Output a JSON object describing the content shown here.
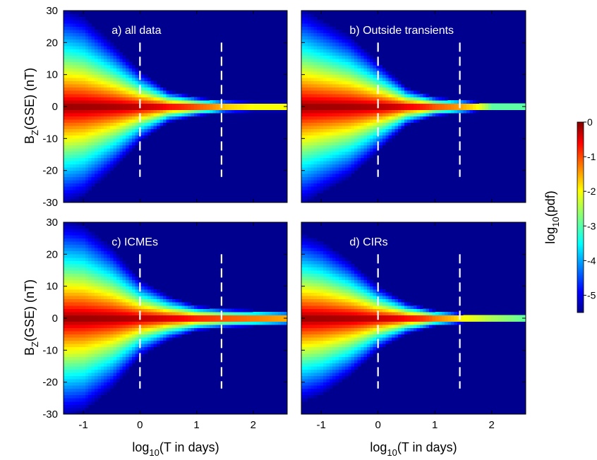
{
  "figure": {
    "colorbar": {
      "label_main": "log",
      "label_sub": "10",
      "label_tail": "(pdf)",
      "range": [
        -5.5,
        0
      ],
      "ticks": [
        "0",
        "-1",
        "-2",
        "-3",
        "-4",
        "-5"
      ],
      "tick_values": [
        0,
        -1,
        -2,
        -3,
        -4,
        -5
      ],
      "colormap": "jet"
    },
    "ylabel": {
      "main": "B",
      "sub": "Z",
      "tail": "(GSE) (nT)"
    },
    "xlabel": {
      "main": "log",
      "sub": "10",
      "tail": "(T in days)"
    },
    "background_color": "#00008f"
  },
  "chart_data": [
    {
      "type": "heatmap",
      "title": "a) all data",
      "x_range": [
        -1.35,
        2.6
      ],
      "y_range": [
        -30,
        30
      ],
      "x_ticks": [
        "-1",
        "0",
        "1",
        "2"
      ],
      "x_tick_values": [
        -1,
        0,
        1,
        2
      ],
      "y_ticks": [
        "30",
        "20",
        "10",
        "0",
        "-10",
        "-20",
        "-30"
      ],
      "y_tick_values": [
        30,
        20,
        10,
        0,
        -10,
        -20,
        -30
      ],
      "dashed_lines_x": [
        0,
        1.44
      ],
      "envelope": {
        "x": [
          -1.3,
          -1,
          -0.5,
          0,
          0.5,
          1,
          1.5,
          2,
          2.6
        ],
        "width": [
          30,
          28,
          20,
          11,
          5,
          3,
          1.8,
          1.5,
          1.5
        ]
      }
    },
    {
      "type": "heatmap",
      "title": "b) Outside transients",
      "x_range": [
        -1.35,
        2.6
      ],
      "y_range": [
        -30,
        30
      ],
      "x_ticks": [
        "-1",
        "0",
        "1",
        "2"
      ],
      "x_tick_values": [
        -1,
        0,
        1,
        2
      ],
      "y_ticks": [
        "30",
        "20",
        "10",
        "0",
        "-10",
        "-20",
        "-30"
      ],
      "y_tick_values": [
        30,
        20,
        10,
        0,
        -10,
        -20,
        -30
      ],
      "dashed_lines_x": [
        0,
        1.44
      ],
      "envelope": {
        "x": [
          -1.3,
          -1,
          -0.5,
          0,
          0.5,
          1,
          1.5,
          2,
          2.6
        ],
        "width": [
          30,
          27,
          22,
          14,
          6,
          3,
          2,
          1,
          1
        ]
      }
    },
    {
      "type": "heatmap",
      "title": "c) ICMEs",
      "x_range": [
        -1.35,
        2.6
      ],
      "y_range": [
        -30,
        30
      ],
      "x_ticks": [
        "-1",
        "0",
        "1",
        "2"
      ],
      "x_tick_values": [
        -1,
        0,
        1,
        2
      ],
      "y_ticks": [
        "30",
        "20",
        "10",
        "0",
        "-10",
        "-20",
        "-30"
      ],
      "y_tick_values": [
        30,
        20,
        10,
        0,
        -10,
        -20,
        -30
      ],
      "dashed_lines_x": [
        0,
        1.44
      ],
      "envelope": {
        "x": [
          -1.3,
          -1,
          -0.5,
          0,
          0.5,
          1,
          1.5,
          2,
          2.6
        ],
        "width": [
          30,
          29,
          22,
          12,
          7,
          4,
          3,
          2.5,
          2
        ]
      }
    },
    {
      "type": "heatmap",
      "title": "d) CIRs",
      "x_range": [
        -1.35,
        2.6
      ],
      "y_range": [
        -30,
        30
      ],
      "x_ticks": [
        "-1",
        "0",
        "1",
        "2"
      ],
      "x_tick_values": [
        -1,
        0,
        1,
        2
      ],
      "y_ticks": [
        "30",
        "20",
        "10",
        "0",
        "-10",
        "-20",
        "-30"
      ],
      "y_tick_values": [
        30,
        20,
        10,
        0,
        -10,
        -20,
        -30
      ],
      "dashed_lines_x": [
        0,
        1.44
      ],
      "envelope": {
        "x": [
          -1.3,
          -1,
          -0.5,
          0,
          0.5,
          1,
          1.5,
          2,
          2.6
        ],
        "width": [
          26,
          24,
          18,
          10,
          5,
          2.5,
          1.5,
          1.2,
          1
        ]
      }
    }
  ]
}
